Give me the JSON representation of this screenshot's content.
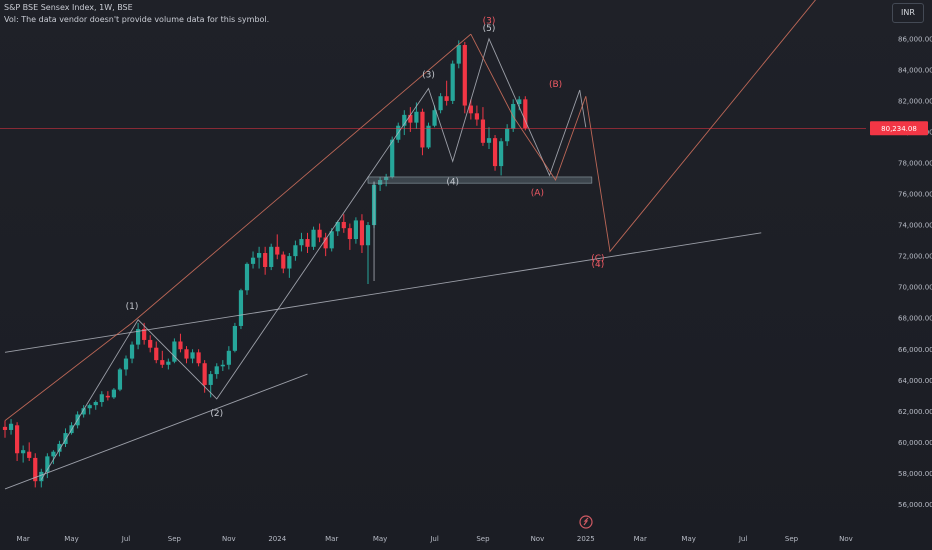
{
  "header": {
    "title": "S&P BSE Sensex Index, 1W, BSE",
    "volume_note": "Vol: The data vendor doesn't provide volume data for this symbol."
  },
  "currency": "INR",
  "price_tag": {
    "value": 80234.08,
    "color": "#f23645"
  },
  "colors": {
    "up": "#26a69a",
    "down": "#f23645",
    "line_grey": "#b2b5be",
    "line_red": "#d7735f"
  },
  "chart_data": {
    "type": "candlestick",
    "title": "S&P BSE Sensex Index, 1W, BSE",
    "y_ticks": [
      56000,
      58000,
      60000,
      62000,
      64000,
      66000,
      68000,
      70000,
      72000,
      74000,
      76000,
      78000,
      80000,
      82000,
      84000,
      86000
    ],
    "y_tick_labels": [
      "56,000.00",
      "58,000.00",
      "60,000.00",
      "62,000.00",
      "64,000.00",
      "66,000.00",
      "68,000.00",
      "70,000.00",
      "72,000.00",
      "74,000.00",
      "76,000.00",
      "78,000.00",
      "80,000.00",
      "82,000.00",
      "84,000.00",
      "86,000.00"
    ],
    "ylim": [
      55000,
      88500
    ],
    "x_ticks": [
      "Mar",
      "May",
      "Jul",
      "Sep",
      "Nov",
      "2024",
      "Mar",
      "May",
      "Jul",
      "Sep",
      "Nov",
      "2025",
      "Mar",
      "May",
      "Jul",
      "Sep",
      "Nov"
    ],
    "x_tick_positions": [
      3,
      11,
      20,
      28,
      37,
      45,
      54,
      62,
      71,
      79,
      88,
      96,
      105,
      113,
      122,
      130,
      139
    ],
    "candles": [
      {
        "o": 61000,
        "h": 61400,
        "l": 60300,
        "c": 60800
      },
      {
        "o": 60800,
        "h": 61500,
        "l": 60500,
        "c": 61200
      },
      {
        "o": 61100,
        "h": 61300,
        "l": 58800,
        "c": 59300
      },
      {
        "o": 59300,
        "h": 59800,
        "l": 58700,
        "c": 59500
      },
      {
        "o": 59400,
        "h": 60000,
        "l": 58800,
        "c": 59000
      },
      {
        "o": 59000,
        "h": 59300,
        "l": 57100,
        "c": 57500
      },
      {
        "o": 57500,
        "h": 58300,
        "l": 57100,
        "c": 58100
      },
      {
        "o": 58100,
        "h": 59300,
        "l": 57700,
        "c": 59100
      },
      {
        "o": 59100,
        "h": 59500,
        "l": 58600,
        "c": 59400
      },
      {
        "o": 59400,
        "h": 60100,
        "l": 59100,
        "c": 59900
      },
      {
        "o": 59900,
        "h": 60900,
        "l": 59700,
        "c": 60600
      },
      {
        "o": 60600,
        "h": 61300,
        "l": 60500,
        "c": 61100
      },
      {
        "o": 61100,
        "h": 62000,
        "l": 60900,
        "c": 61800
      },
      {
        "o": 61800,
        "h": 62400,
        "l": 61600,
        "c": 62200
      },
      {
        "o": 62200,
        "h": 62500,
        "l": 61800,
        "c": 62400
      },
      {
        "o": 62400,
        "h": 62700,
        "l": 62100,
        "c": 62600
      },
      {
        "o": 62600,
        "h": 63300,
        "l": 62300,
        "c": 63100
      },
      {
        "o": 63000,
        "h": 63300,
        "l": 62700,
        "c": 62900
      },
      {
        "o": 62900,
        "h": 63500,
        "l": 62800,
        "c": 63400
      },
      {
        "o": 63400,
        "h": 64800,
        "l": 63300,
        "c": 64700
      },
      {
        "o": 64700,
        "h": 65600,
        "l": 64300,
        "c": 65400
      },
      {
        "o": 65400,
        "h": 66500,
        "l": 65100,
        "c": 66300
      },
      {
        "o": 66300,
        "h": 67700,
        "l": 66000,
        "c": 67300
      },
      {
        "o": 67300,
        "h": 67700,
        "l": 66300,
        "c": 66600
      },
      {
        "o": 66600,
        "h": 66900,
        "l": 65800,
        "c": 66100
      },
      {
        "o": 66100,
        "h": 66500,
        "l": 65100,
        "c": 65300
      },
      {
        "o": 65300,
        "h": 65900,
        "l": 64800,
        "c": 65000
      },
      {
        "o": 65000,
        "h": 65400,
        "l": 64700,
        "c": 65200
      },
      {
        "o": 65200,
        "h": 66700,
        "l": 65100,
        "c": 66500
      },
      {
        "o": 66500,
        "h": 67000,
        "l": 65800,
        "c": 66000
      },
      {
        "o": 66000,
        "h": 66200,
        "l": 65100,
        "c": 65400
      },
      {
        "o": 65400,
        "h": 66000,
        "l": 65100,
        "c": 65800
      },
      {
        "o": 65800,
        "h": 66000,
        "l": 64900,
        "c": 65100
      },
      {
        "o": 65100,
        "h": 65300,
        "l": 63200,
        "c": 63700
      },
      {
        "o": 63700,
        "h": 64600,
        "l": 62900,
        "c": 64400
      },
      {
        "o": 64400,
        "h": 65100,
        "l": 64100,
        "c": 64900
      },
      {
        "o": 64900,
        "h": 65300,
        "l": 64600,
        "c": 65000
      },
      {
        "o": 65000,
        "h": 66200,
        "l": 64700,
        "c": 65900
      },
      {
        "o": 65900,
        "h": 67700,
        "l": 65800,
        "c": 67500
      },
      {
        "o": 67500,
        "h": 69900,
        "l": 67300,
        "c": 69800
      },
      {
        "o": 69800,
        "h": 71600,
        "l": 69500,
        "c": 71500
      },
      {
        "o": 71500,
        "h": 72300,
        "l": 71200,
        "c": 71900
      },
      {
        "o": 71900,
        "h": 72600,
        "l": 71200,
        "c": 72200
      },
      {
        "o": 72200,
        "h": 72600,
        "l": 70800,
        "c": 71300
      },
      {
        "o": 71300,
        "h": 72800,
        "l": 71100,
        "c": 72600
      },
      {
        "o": 72600,
        "h": 73400,
        "l": 71800,
        "c": 72100
      },
      {
        "o": 72100,
        "h": 72300,
        "l": 70900,
        "c": 71200
      },
      {
        "o": 71200,
        "h": 72200,
        "l": 70600,
        "c": 72000
      },
      {
        "o": 72000,
        "h": 73000,
        "l": 71700,
        "c": 72700
      },
      {
        "o": 72700,
        "h": 73500,
        "l": 72300,
        "c": 73100
      },
      {
        "o": 73100,
        "h": 73500,
        "l": 72200,
        "c": 72600
      },
      {
        "o": 72600,
        "h": 73900,
        "l": 72400,
        "c": 73700
      },
      {
        "o": 73700,
        "h": 74100,
        "l": 72900,
        "c": 73200
      },
      {
        "o": 73200,
        "h": 73500,
        "l": 72000,
        "c": 72500
      },
      {
        "o": 72500,
        "h": 73800,
        "l": 72300,
        "c": 73600
      },
      {
        "o": 73600,
        "h": 74300,
        "l": 73300,
        "c": 74200
      },
      {
        "o": 74200,
        "h": 74700,
        "l": 73500,
        "c": 73800
      },
      {
        "o": 73800,
        "h": 74100,
        "l": 72400,
        "c": 73100
      },
      {
        "o": 73100,
        "h": 74500,
        "l": 72800,
        "c": 74300
      },
      {
        "o": 74300,
        "h": 74700,
        "l": 72200,
        "c": 72700
      },
      {
        "o": 72700,
        "h": 74200,
        "l": 70200,
        "c": 74000
      },
      {
        "o": 74000,
        "h": 76800,
        "l": 73800,
        "c": 76600
      },
      {
        "o": 76600,
        "h": 77100,
        "l": 76200,
        "c": 76900
      },
      {
        "o": 76900,
        "h": 77300,
        "l": 76500,
        "c": 77100
      },
      {
        "o": 77100,
        "h": 79700,
        "l": 77000,
        "c": 79500
      },
      {
        "o": 79500,
        "h": 80600,
        "l": 79300,
        "c": 80400
      },
      {
        "o": 80400,
        "h": 81400,
        "l": 79800,
        "c": 81100
      },
      {
        "o": 81100,
        "h": 81600,
        "l": 80000,
        "c": 80600
      },
      {
        "o": 80600,
        "h": 81900,
        "l": 80200,
        "c": 81300
      },
      {
        "o": 81300,
        "h": 81500,
        "l": 78500,
        "c": 79000
      },
      {
        "o": 79000,
        "h": 80600,
        "l": 78900,
        "c": 80400
      },
      {
        "o": 80400,
        "h": 81700,
        "l": 80300,
        "c": 81400
      },
      {
        "o": 81400,
        "h": 82500,
        "l": 81200,
        "c": 82300
      },
      {
        "o": 82300,
        "h": 83300,
        "l": 81700,
        "c": 82000
      },
      {
        "o": 82000,
        "h": 84600,
        "l": 81800,
        "c": 84400
      },
      {
        "o": 84400,
        "h": 85900,
        "l": 84100,
        "c": 85600
      },
      {
        "o": 85600,
        "h": 85800,
        "l": 81200,
        "c": 81700
      },
      {
        "o": 81700,
        "h": 82100,
        "l": 80800,
        "c": 81200
      },
      {
        "o": 81200,
        "h": 81700,
        "l": 80400,
        "c": 80800
      },
      {
        "o": 80800,
        "h": 81600,
        "l": 79100,
        "c": 79300
      },
      {
        "o": 79300,
        "h": 80300,
        "l": 78900,
        "c": 79600
      },
      {
        "o": 79600,
        "h": 79800,
        "l": 77500,
        "c": 77800
      },
      {
        "o": 77800,
        "h": 79600,
        "l": 77200,
        "c": 79400
      },
      {
        "o": 79400,
        "h": 80500,
        "l": 79100,
        "c": 80200
      },
      {
        "o": 80200,
        "h": 82100,
        "l": 80000,
        "c": 81800
      },
      {
        "o": 81800,
        "h": 82300,
        "l": 81400,
        "c": 82100
      },
      {
        "o": 82100,
        "h": 82300,
        "l": 80100,
        "c": 80234
      }
    ],
    "trendlines": [
      {
        "color": "grey",
        "points": [
          [
            0,
            65800
          ],
          [
            125,
            73500
          ]
        ]
      },
      {
        "color": "grey",
        "points": [
          [
            0,
            57000
          ],
          [
            50,
            64400
          ]
        ]
      },
      {
        "color": "grey",
        "points": [
          [
            61,
            70400
          ],
          [
            61,
            76800
          ]
        ]
      },
      {
        "color": "grey",
        "points": [
          [
            6,
            57600
          ],
          [
            22,
            67900
          ],
          [
            35,
            62800
          ],
          [
            70,
            82800
          ],
          [
            74,
            78100
          ],
          [
            80,
            86000
          ],
          [
            90,
            77200
          ],
          [
            95,
            82700
          ],
          [
            96,
            80300
          ]
        ]
      },
      {
        "color": "red",
        "points": [
          [
            0,
            61400
          ],
          [
            21,
            67700
          ],
          [
            77,
            86300
          ]
        ]
      },
      {
        "color": "red",
        "points": [
          [
            77,
            86300
          ],
          [
            84,
            81000
          ],
          [
            91,
            76900
          ],
          [
            96,
            82300
          ],
          [
            100,
            72300
          ],
          [
            135,
            89000
          ]
        ]
      }
    ],
    "fib_box": {
      "x1": 60,
      "x2": 97,
      "y1": 76700,
      "y2": 77100
    },
    "wave_labels": [
      {
        "text": "(1)",
        "x": 21,
        "y": 68600,
        "color": "grey"
      },
      {
        "text": "(2)",
        "x": 35,
        "y": 61700,
        "color": "grey"
      },
      {
        "text": "(3)",
        "x": 70,
        "y": 83500,
        "color": "grey"
      },
      {
        "text": "(4)",
        "x": 74,
        "y": 76600,
        "color": "grey"
      },
      {
        "text": "(5)",
        "x": 80,
        "y": 86500,
        "color": "grey"
      },
      {
        "text": "(3)",
        "x": 80,
        "y": 87000,
        "color": "red"
      },
      {
        "text": "(A)",
        "x": 88,
        "y": 75900,
        "color": "red"
      },
      {
        "text": "(B)",
        "x": 91,
        "y": 82900,
        "color": "red"
      },
      {
        "text": "(C)",
        "x": 98,
        "y": 71700,
        "color": "red"
      },
      {
        "text": "(4)",
        "x": 98,
        "y": 71300,
        "color": "red"
      }
    ]
  }
}
